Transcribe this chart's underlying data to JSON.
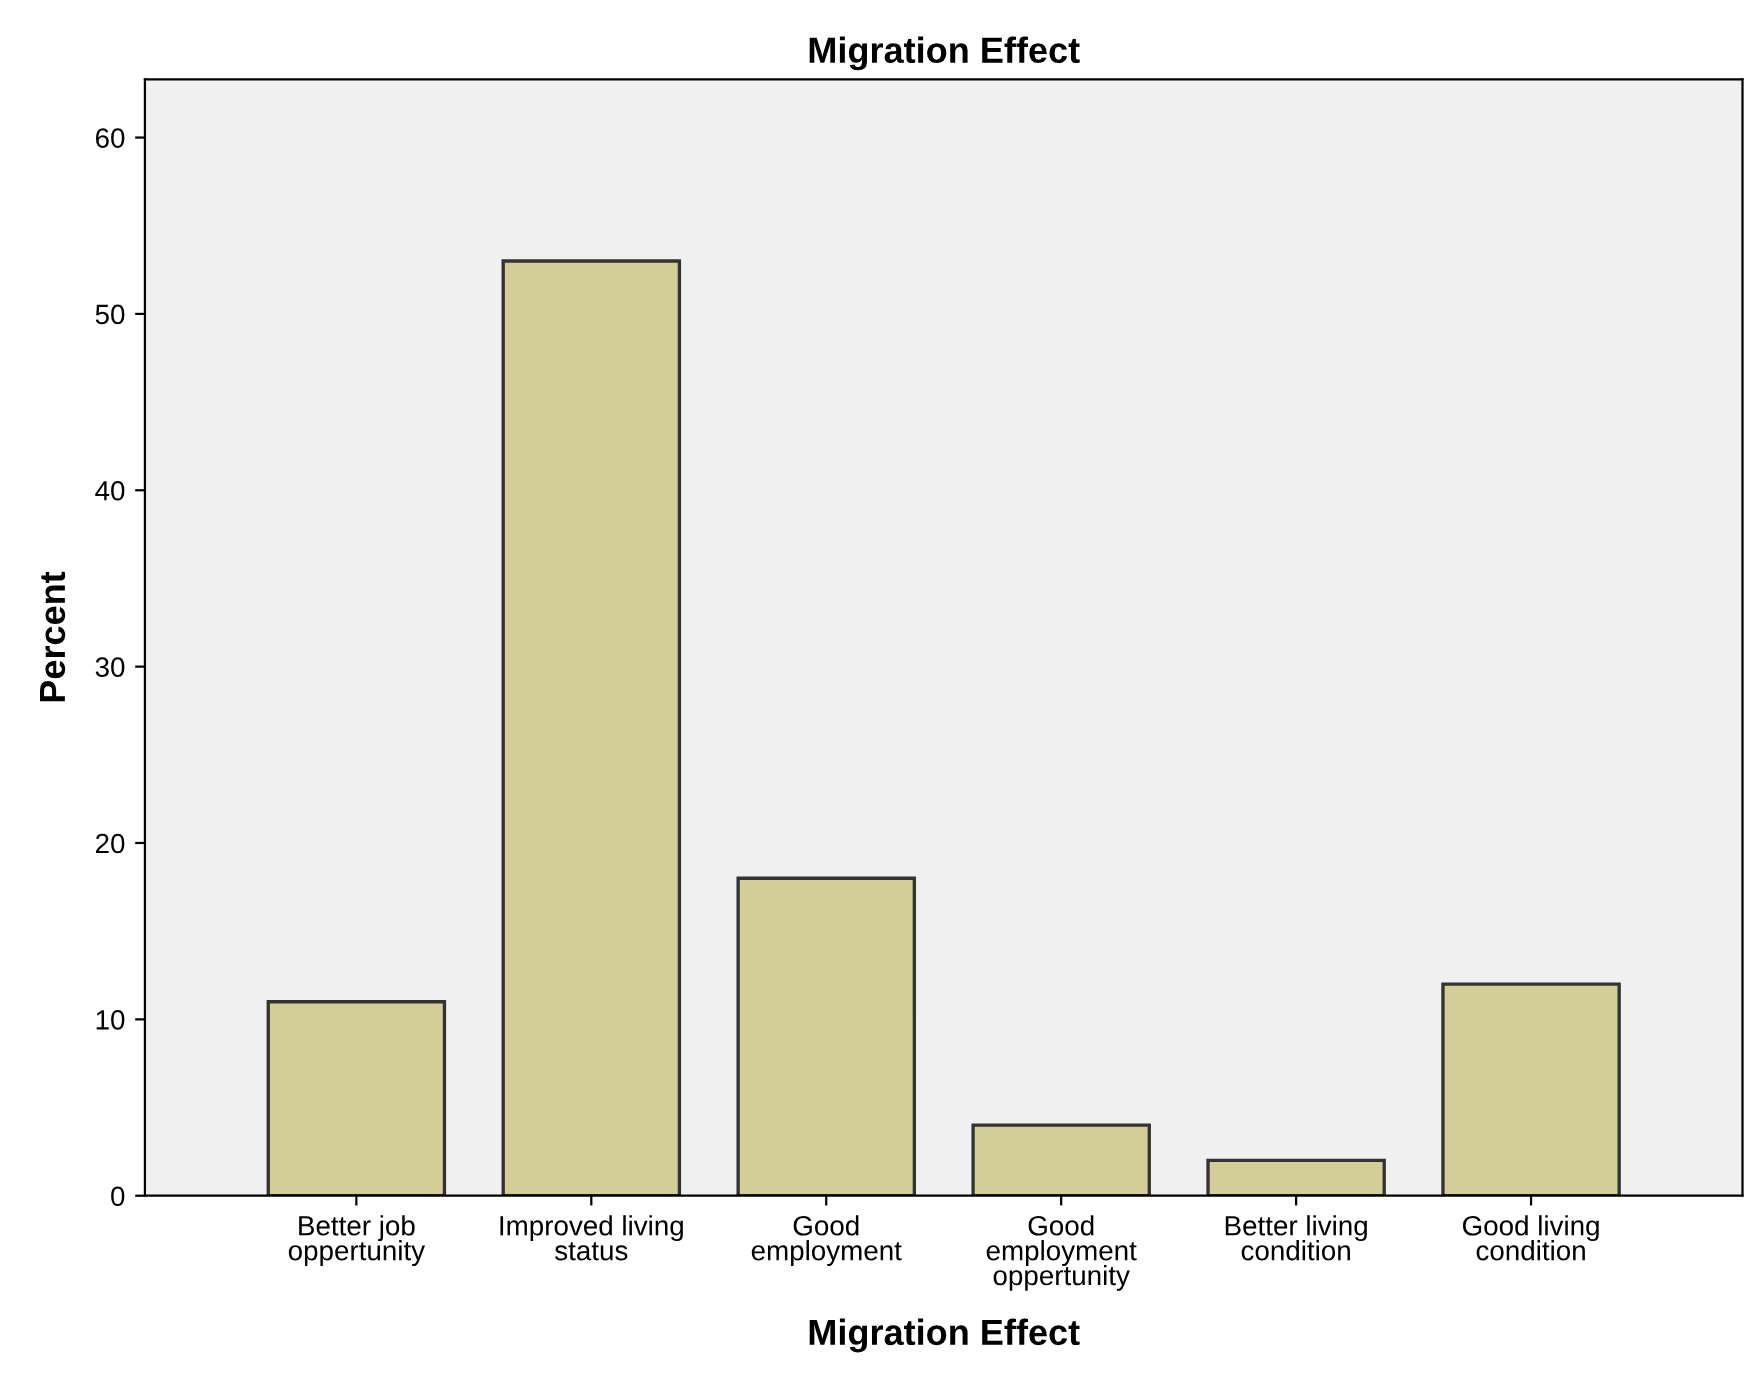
{
  "chart_data": {
    "type": "bar",
    "title": "Migration Effect",
    "xlabel": "Migration Effect",
    "ylabel": "Percent",
    "categories": [
      "Better job\noppertunity",
      "Improved living\nstatus",
      "Good\nemployment",
      "Good\nemployment\noppertunity",
      "Better living\ncondition",
      "Good living\ncondition"
    ],
    "values": [
      11,
      53,
      18,
      4,
      2,
      12
    ],
    "color": "#d3ce97",
    "ylim": [
      0,
      63.3
    ],
    "yticks": [
      0,
      10,
      20,
      30,
      40,
      50,
      60
    ],
    "grid": false,
    "legend": false
  }
}
